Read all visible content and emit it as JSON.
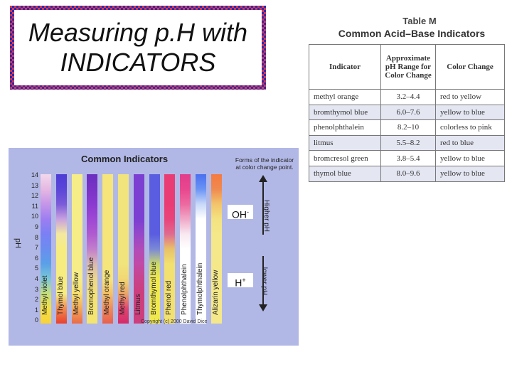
{
  "title": {
    "line1": "Measuring p.H with",
    "line2": "INDICATORS"
  },
  "table_m": {
    "caption_label": "Table M",
    "caption_title": "Common Acid–Base Indicators",
    "headers": [
      "Indicator",
      "Approximate pH Range for Color Change",
      "Color Change"
    ],
    "rows": [
      [
        "methyl orange",
        "3.2–4.4",
        "red to yellow"
      ],
      [
        "bromthymol blue",
        "6.0–7.6",
        "yellow to blue"
      ],
      [
        "phenolphthalein",
        "8.2–10",
        "colorless to pink"
      ],
      [
        "litmus",
        "5.5–8.2",
        "red to blue"
      ],
      [
        "bromcresol green",
        "3.8–5.4",
        "yellow to blue"
      ],
      [
        "thymol blue",
        "8.0–9.6",
        "yellow to blue"
      ]
    ]
  },
  "chart": {
    "title": "Common Indicators",
    "forms_note": "Forms of the indicator at color change point.",
    "axis_label": "pH",
    "y_ticks": [
      "14",
      "13",
      "12",
      "11",
      "10",
      "9",
      "8",
      "7",
      "6",
      "5",
      "4",
      "3",
      "2",
      "1",
      "0"
    ],
    "bars": [
      {
        "name": "Methyl violet",
        "gradient": [
          "#f2d9ec",
          "#e6b8e2",
          "#c596e8",
          "#9d7ef0",
          "#7a80f4",
          "#6b8df0",
          "#5aa0e8",
          "#7ac7d8",
          "#c6e07a",
          "#f5e040",
          "#f7d23a"
        ]
      },
      {
        "name": "Thymol blue",
        "gradient": [
          "#4d3bd6",
          "#5a46d8",
          "#7a5ad8",
          "#c8a0e0",
          "#f4e8a0",
          "#f6ec80",
          "#f6ec80",
          "#f6ec80",
          "#f6ec80",
          "#f08a50",
          "#e8402e"
        ]
      },
      {
        "name": "Methyl yellow",
        "gradient": [
          "#f6ec88",
          "#f6ec88",
          "#f6ec88",
          "#f6ec88",
          "#f6ec88",
          "#f6ec88",
          "#f6ec88",
          "#f6ec88",
          "#f6e070",
          "#f3a85a",
          "#ea6a48"
        ]
      },
      {
        "name": "Bromophenol blue",
        "gradient": [
          "#6b2fc0",
          "#7a33c6",
          "#8b3ad0",
          "#9e47d4",
          "#b05ad0",
          "#c27ecb",
          "#d9b8b0",
          "#ecd68a",
          "#f3e176",
          "#f4e470",
          "#f4e470"
        ]
      },
      {
        "name": "Methyl orange",
        "gradient": [
          "#f6e57a",
          "#f6e57a",
          "#f6e57a",
          "#f6e57a",
          "#f6e57a",
          "#f6e57a",
          "#f6e57a",
          "#f6e57a",
          "#f4c066",
          "#ee8a5a",
          "#e8604c"
        ]
      },
      {
        "name": "Methyl red",
        "gradient": [
          "#f1e47c",
          "#f1e47c",
          "#f1e47c",
          "#f1e47c",
          "#f1e47c",
          "#f1e47c",
          "#f1e47c",
          "#f1d874",
          "#eaa468",
          "#e0446e",
          "#d42c6a"
        ]
      },
      {
        "name": "Litmus",
        "gradient": [
          "#7b3fd2",
          "#7b3fd2",
          "#7b3fd2",
          "#7b3fd2",
          "#9448c8",
          "#b04cb8",
          "#c04aa6",
          "#c8448c",
          "#cc3f7c",
          "#cc3f7c",
          "#cc3f7c"
        ]
      },
      {
        "name": "Bromthymol blue",
        "gradient": [
          "#5a5de0",
          "#5a5de0",
          "#5a5de0",
          "#5a5de0",
          "#5a5de0",
          "#7a88d8",
          "#c8d86e",
          "#f0e850",
          "#f0e850",
          "#f0e850",
          "#f0e850"
        ]
      },
      {
        "name": "Phenol red",
        "gradient": [
          "#ea3c74",
          "#ea3c74",
          "#ea3c74",
          "#e8437a",
          "#e06a90",
          "#e8c068",
          "#f2e070",
          "#f2e070",
          "#f2e070",
          "#f2e070",
          "#f2e070"
        ]
      },
      {
        "name": "Phenolphthalein",
        "gradient": [
          "#e23d8c",
          "#e8478f",
          "#ec6aa0",
          "#f0a8c8",
          "#f8e8f0",
          "#ffffff",
          "#ffffff",
          "#ffffff",
          "#ffffff",
          "#ffffff",
          "#ffffff"
        ]
      },
      {
        "name": "Thymolphthalein",
        "gradient": [
          "#4a6ff0",
          "#6a94f4",
          "#c8d8f8",
          "#ffffff",
          "#ffffff",
          "#ffffff",
          "#ffffff",
          "#ffffff",
          "#ffffff",
          "#ffffff",
          "#ffffff"
        ]
      },
      {
        "name": "Alizarin yellow",
        "gradient": [
          "#f57a40",
          "#f08a50",
          "#f2c46c",
          "#f4e280",
          "#f4e88a",
          "#f4e88a",
          "#f4e88a",
          "#f4e88a",
          "#f4e88a",
          "#f4e88a",
          "#f4e88a"
        ]
      }
    ],
    "oh_label": "OH",
    "oh_sup": "-",
    "h_label": "H",
    "h_sup": "+",
    "higher_label": "Higher pH",
    "lower_label": "lower pH",
    "copyright": "Copyright (c) 2000 David Dice"
  }
}
